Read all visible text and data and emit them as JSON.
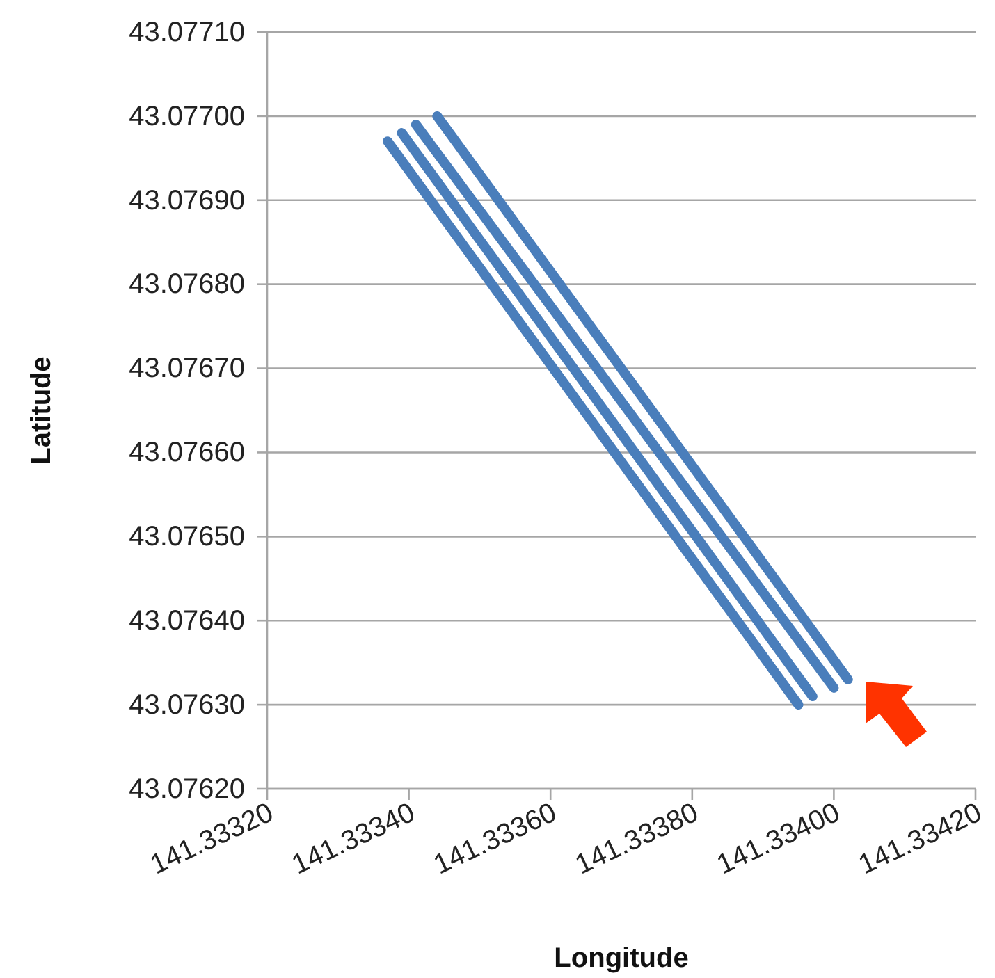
{
  "chart_data": {
    "type": "line",
    "xlabel": "Longitude",
    "ylabel": "Latitude",
    "series": [
      {
        "color": "#4a7ebb",
        "x": [
          141.33337,
          141.33395
        ],
        "values": [
          43.07697,
          43.0763
        ]
      },
      {
        "color": "#4a7ebb",
        "x": [
          141.33339,
          141.33397
        ],
        "values": [
          43.07698,
          43.07631
        ]
      },
      {
        "color": "#4a7ebb",
        "x": [
          141.33341,
          141.334
        ],
        "values": [
          43.07699,
          43.07632
        ]
      },
      {
        "color": "#4a7ebb",
        "x": [
          141.33344,
          141.33402
        ],
        "values": [
          43.077,
          43.07633
        ]
      }
    ],
    "xlim": [
      141.3332,
      141.3342
    ],
    "xticks": [
      {
        "value": 141.3332,
        "label": "141.33320"
      },
      {
        "value": 141.3334,
        "label": "141.33340"
      },
      {
        "value": 141.3336,
        "label": "141.33360"
      },
      {
        "value": 141.3338,
        "label": "141.33380"
      },
      {
        "value": 141.334,
        "label": "141.33400"
      },
      {
        "value": 141.3342,
        "label": "141.33420"
      }
    ],
    "ylim": [
      43.0762,
      43.0771
    ],
    "yticks": [
      {
        "value": 43.0762,
        "label": "43.07620"
      },
      {
        "value": 43.0763,
        "label": "43.07630"
      },
      {
        "value": 43.0764,
        "label": "43.07640"
      },
      {
        "value": 43.0765,
        "label": "43.07650"
      },
      {
        "value": 43.0766,
        "label": "43.07660"
      },
      {
        "value": 43.0767,
        "label": "43.07670"
      },
      {
        "value": 43.0768,
        "label": "43.07680"
      },
      {
        "value": 43.0769,
        "label": "43.07690"
      },
      {
        "value": 43.077,
        "label": "43.07700"
      },
      {
        "value": 43.0771,
        "label": "43.07710"
      }
    ],
    "grid": "y",
    "marker": "none",
    "line_style": "solid"
  }
}
